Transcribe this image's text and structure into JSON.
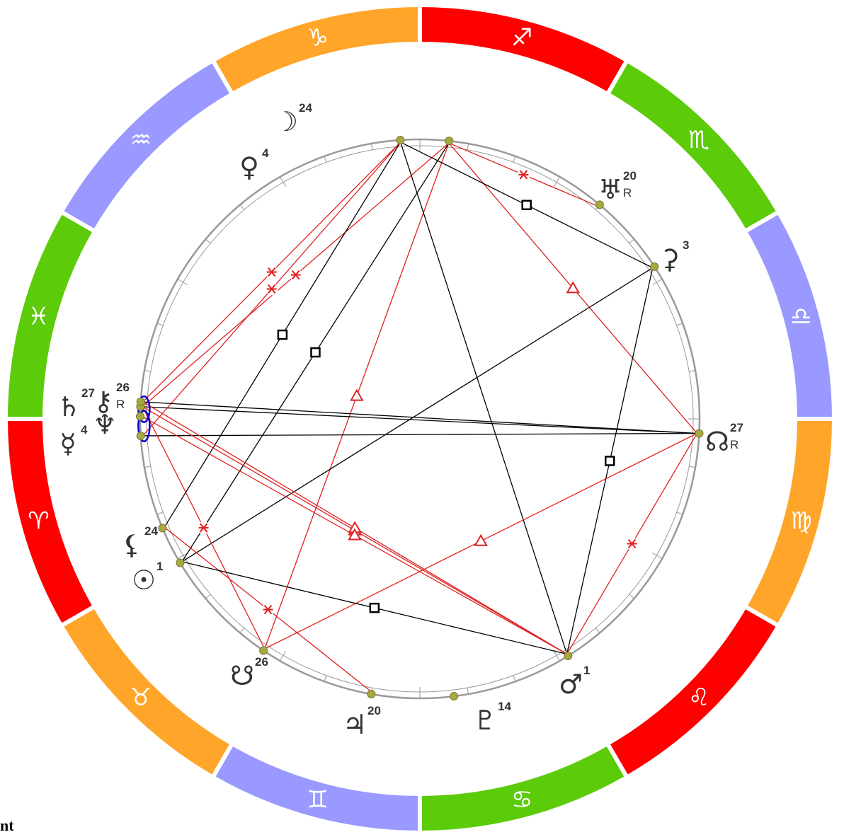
{
  "colors": {
    "fire": "#ff0000",
    "earth": "#ffa52a",
    "air": "#9999ff",
    "water": "#5ccb0a",
    "aspect_hard": "#000000",
    "aspect_soft": "#e02020",
    "planet_dot": "#a8a840",
    "ring": "#999999",
    "conjunction": "#0000cc"
  },
  "signs": [
    {
      "name": "aries",
      "glyph": "♈",
      "element": "fire"
    },
    {
      "name": "taurus",
      "glyph": "♉",
      "element": "earth"
    },
    {
      "name": "gemini",
      "glyph": "♊",
      "element": "air"
    },
    {
      "name": "cancer",
      "glyph": "♋",
      "element": "water"
    },
    {
      "name": "leo",
      "glyph": "♌",
      "element": "fire"
    },
    {
      "name": "virgo",
      "glyph": "♍",
      "element": "earth"
    },
    {
      "name": "libra",
      "glyph": "♎",
      "element": "air"
    },
    {
      "name": "scorpio",
      "glyph": "♏",
      "element": "water"
    },
    {
      "name": "sagittarius",
      "glyph": "♐",
      "element": "fire"
    },
    {
      "name": "capricorn",
      "glyph": "♑",
      "element": "earth"
    },
    {
      "name": "aquarius",
      "glyph": "♒",
      "element": "air"
    },
    {
      "name": "pisces",
      "glyph": "♓",
      "element": "water"
    }
  ],
  "planets": [
    {
      "name": "moon",
      "glyph": "☽",
      "degree": "24",
      "retro": "",
      "longitude": 264
    },
    {
      "name": "venus",
      "glyph": "♀",
      "degree": "4",
      "retro": "",
      "longitude": 274
    },
    {
      "name": "uranus",
      "glyph": "♅",
      "degree": "20",
      "retro": "R",
      "longitude": 230
    },
    {
      "name": "ceres",
      "glyph": "⚳",
      "degree": "3",
      "retro": "",
      "longitude": 213
    },
    {
      "name": "north-node",
      "glyph": "☊",
      "degree": "27",
      "retro": "R",
      "longitude": 177
    },
    {
      "name": "saturn",
      "glyph": "♄",
      "degree": "27",
      "retro": "",
      "longitude": 357.5
    },
    {
      "name": "chiron",
      "glyph": "⚷",
      "degree": "26",
      "retro": "R",
      "longitude": 356.5
    },
    {
      "name": "neptune",
      "glyph": "♆",
      "degree": "",
      "retro": "",
      "longitude": 359.5
    },
    {
      "name": "mercury",
      "glyph": "☿",
      "degree": "4",
      "retro": "",
      "longitude": 3.5
    },
    {
      "name": "black-moon",
      "glyph": "⚸",
      "degree": "24",
      "retro": "",
      "longitude": 23
    },
    {
      "name": "sun",
      "glyph": "☉",
      "degree": "1",
      "retro": "",
      "longitude": 31
    },
    {
      "name": "south-node",
      "glyph": "☋",
      "degree": "26",
      "retro": "",
      "longitude": 56
    },
    {
      "name": "jupiter",
      "glyph": "♃",
      "degree": "20",
      "retro": "",
      "longitude": 80
    },
    {
      "name": "pluto",
      "glyph": "♇",
      "degree": "14",
      "retro": "",
      "longitude": 97
    },
    {
      "name": "mars",
      "glyph": "♂",
      "degree": "1",
      "retro": "",
      "longitude": 122
    }
  ],
  "aspects": [
    {
      "from": "moon",
      "to": "uranus",
      "type": "sextile"
    },
    {
      "from": "moon",
      "to": "north-node",
      "type": "trine"
    },
    {
      "from": "moon",
      "to": "south-node",
      "type": "trine"
    },
    {
      "from": "moon",
      "to": "saturn",
      "type": "sextile"
    },
    {
      "from": "moon",
      "to": "sun",
      "type": "square"
    },
    {
      "from": "venus",
      "to": "ceres",
      "type": "square"
    },
    {
      "from": "venus",
      "to": "mars",
      "type": "opposition"
    },
    {
      "from": "venus",
      "to": "chiron",
      "type": "sextile"
    },
    {
      "from": "venus",
      "to": "mercury",
      "type": "sextile"
    },
    {
      "from": "venus",
      "to": "black-moon",
      "type": "square"
    },
    {
      "from": "ceres",
      "to": "sun",
      "type": "opposition"
    },
    {
      "from": "ceres",
      "to": "mars",
      "type": "square"
    },
    {
      "from": "north-node",
      "to": "saturn",
      "type": "opposition"
    },
    {
      "from": "north-node",
      "to": "chiron",
      "type": "opposition"
    },
    {
      "from": "north-node",
      "to": "mercury",
      "type": "opposition"
    },
    {
      "from": "north-node",
      "to": "south-node",
      "type": "trine"
    },
    {
      "from": "north-node",
      "to": "mars",
      "type": "sextile"
    },
    {
      "from": "saturn",
      "to": "mars",
      "type": "trine"
    },
    {
      "from": "chiron",
      "to": "mars",
      "type": "trine"
    },
    {
      "from": "neptune",
      "to": "mars",
      "type": "trine"
    },
    {
      "from": "saturn",
      "to": "south-node",
      "type": "sextile"
    },
    {
      "from": "black-moon",
      "to": "jupiter",
      "type": "sextile"
    },
    {
      "from": "sun",
      "to": "mars",
      "type": "square"
    }
  ],
  "footer": {
    "text": "nt"
  }
}
